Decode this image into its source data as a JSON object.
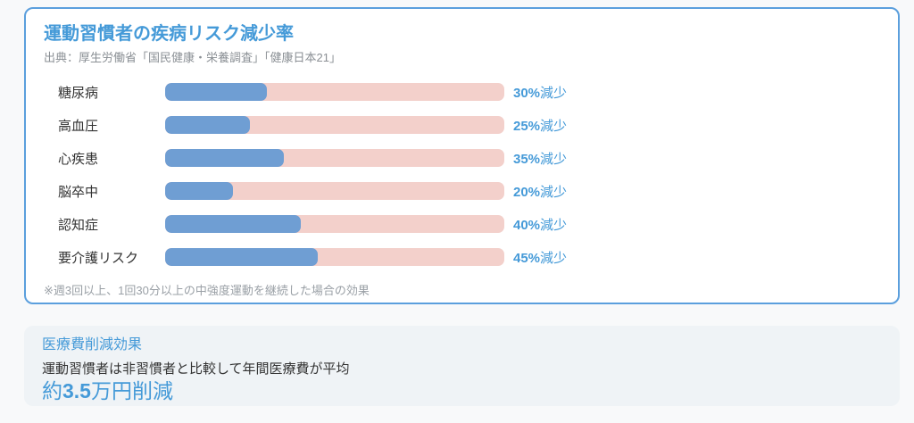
{
  "colors": {
    "accent_blue": "#459ad8",
    "bar_blue": "#6f9ed3",
    "bar_track_pink": "#f3d0cb",
    "card_border_blue": "#5b9fdd",
    "info_card_bg": "#eff3f6",
    "page_bg": "#f8f9fa",
    "text_dark": "#333333",
    "text_gray": "#8a8f94"
  },
  "chart_card": {
    "title": "運動習慣者の疾病リスク減少率",
    "source": "出典：厚生労働省「国民健康・栄養調査」「健康日本21」",
    "note": "※週3回以上、1回30分以上の中強度運動を継続した場合の効果"
  },
  "chart_data": {
    "type": "bar",
    "orientation": "horizontal",
    "title": "運動習慣者の疾病リスク減少率",
    "categories": [
      "糖尿病",
      "高血圧",
      "心疾患",
      "脳卒中",
      "認知症",
      "要介護リスク"
    ],
    "values": [
      30,
      25,
      35,
      20,
      40,
      45
    ],
    "value_suffix": "減少",
    "value_labels": [
      "30%減少",
      "25%減少",
      "35%減少",
      "20%減少",
      "40%減少",
      "45%減少"
    ],
    "xlim": [
      0,
      100
    ],
    "grid": false,
    "legend": false,
    "bar_color": "#6f9ed3",
    "track_color": "#f3d0cb"
  },
  "info_card": {
    "title": "医療費削減効果",
    "body": "運動習慣者は非習慣者と比較して年間医療費が平均",
    "highlight_prefix": "約",
    "highlight_value": "3.5",
    "highlight_suffix": "万円削減"
  }
}
